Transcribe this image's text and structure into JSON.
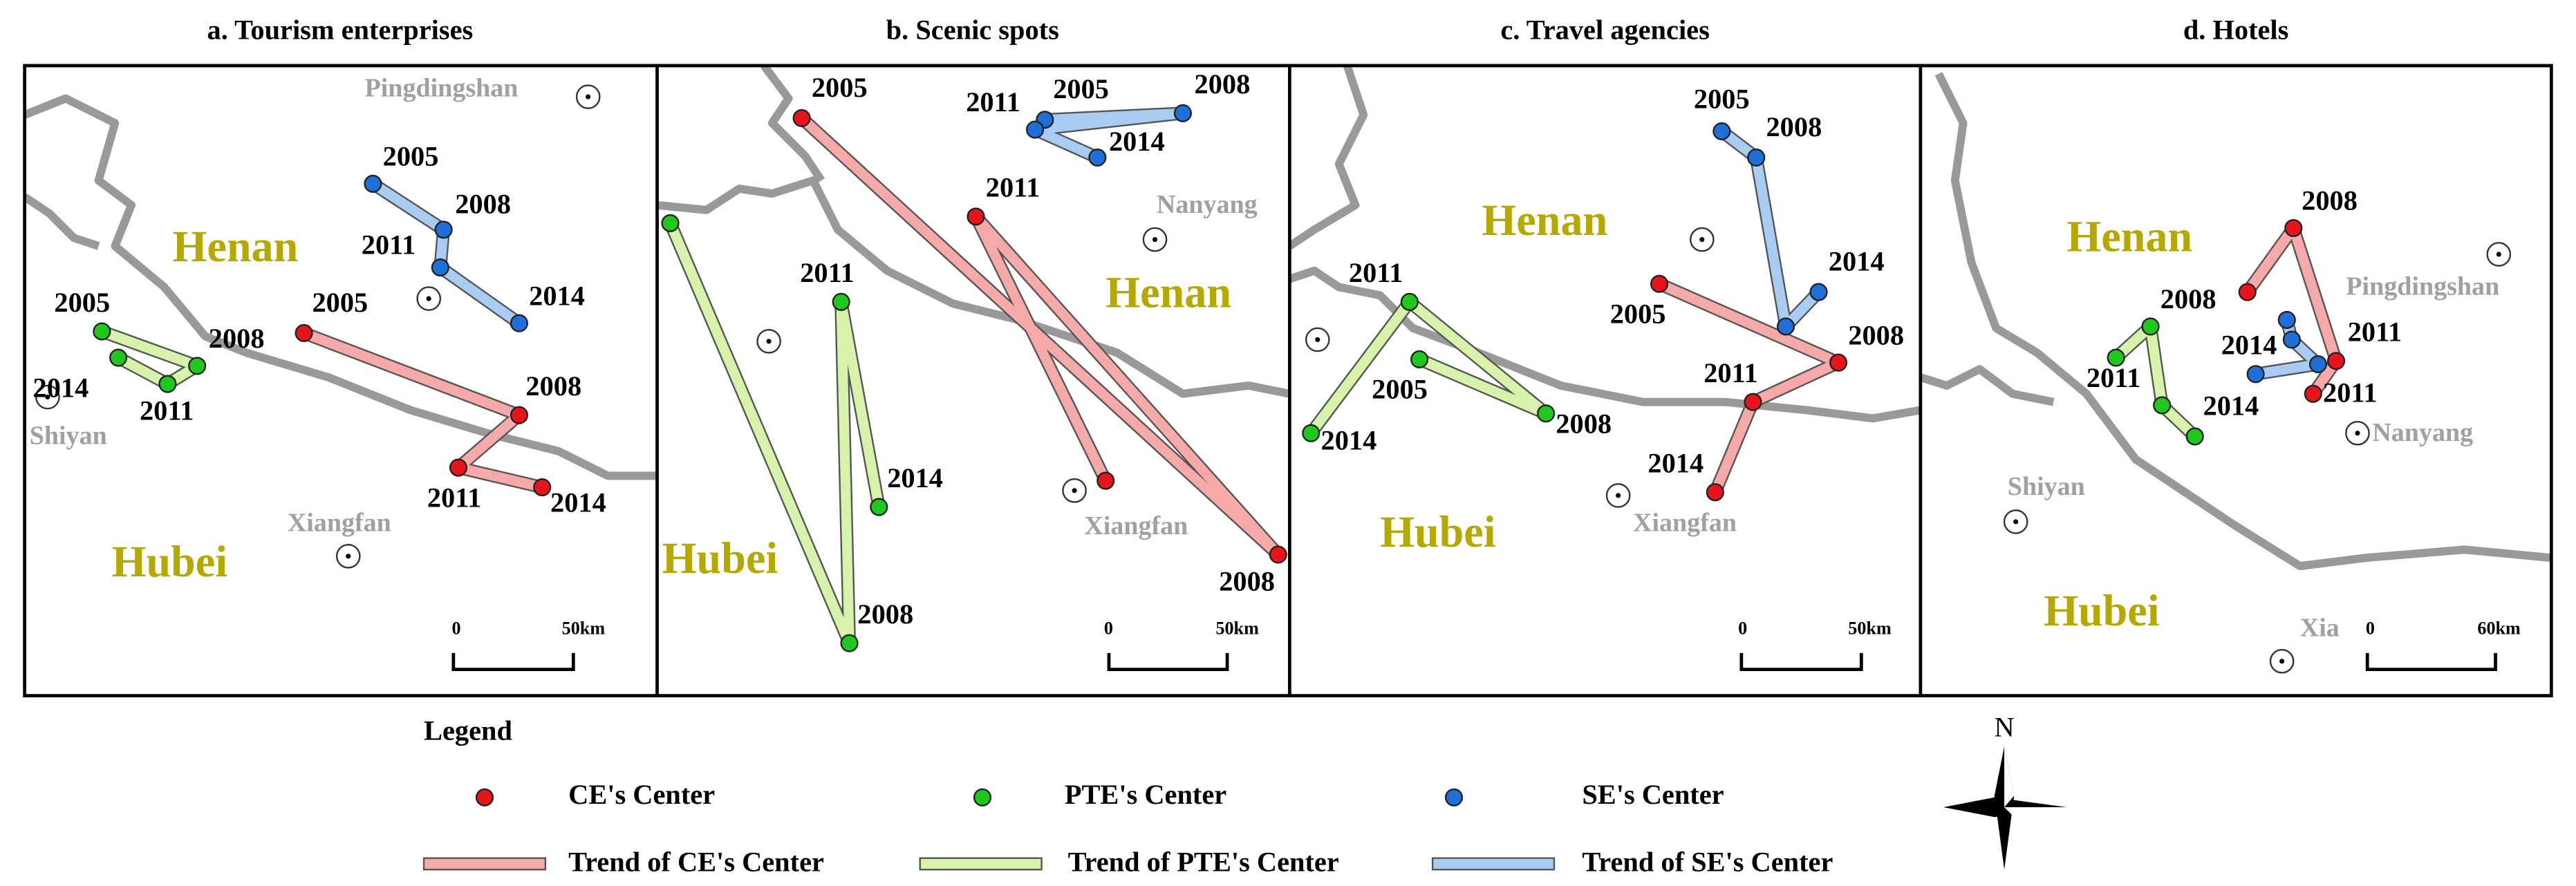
{
  "panels": [
    {
      "title": "a. Tourism enterprises",
      "provinces": [
        "Henan",
        "Hubei"
      ],
      "cities": [
        "Pingdingshan",
        "Shiyan",
        "Xiangfan"
      ],
      "scale": [
        "0",
        "50km"
      ],
      "ce": [
        "2005",
        "2008",
        "2011",
        "2014"
      ],
      "pte": [
        "2005",
        "2008",
        "2011",
        "2014"
      ],
      "se": [
        "2005",
        "2008",
        "2011",
        "2014"
      ]
    },
    {
      "title": "b. Scenic spots",
      "provinces": [
        "Henan",
        "Hubei"
      ],
      "cities": [
        "Nanyang",
        "Xiangfan"
      ],
      "scale": [
        "0",
        "50km"
      ],
      "ce": [
        "2005",
        "2008",
        "2011",
        null
      ],
      "pte": [
        null,
        "2008",
        "2011",
        "2014"
      ],
      "se": [
        "2005",
        "2008",
        "2011",
        "2014"
      ]
    },
    {
      "title": "c. Travel agencies",
      "provinces": [
        "Henan",
        "Hubei"
      ],
      "cities": [
        "Xiangfan"
      ],
      "scale": [
        "0",
        "50km"
      ],
      "ce": [
        "2005",
        "2008",
        "2011",
        "2014"
      ],
      "pte": [
        "2005",
        "2008",
        "2011",
        "2014"
      ],
      "se": [
        "2005",
        "2008",
        null,
        "2014"
      ]
    },
    {
      "title": "d. Hotels",
      "provinces": [
        "Henan",
        "Hubei"
      ],
      "cities": [
        "Pingdingshan",
        "Nanyang",
        "Shiyan",
        "Xia"
      ],
      "scale": [
        "0",
        "60km"
      ],
      "ce": [
        null,
        "2008",
        "2011",
        "2011"
      ],
      "pte": [
        "2011",
        "2008",
        null,
        "2014"
      ],
      "se": [
        null,
        null,
        null,
        "2014"
      ]
    }
  ],
  "legend": {
    "title": "Legend",
    "centers": [
      {
        "name": "CE's Center",
        "color": "#e8141c"
      },
      {
        "name": "PTE's Center",
        "color": "#1ec81e"
      },
      {
        "name": "SE's Center",
        "color": "#1f6fd8"
      }
    ],
    "trends": [
      {
        "name": "Trend of CE's Center",
        "color": "#f5a9a9"
      },
      {
        "name": "Trend of PTE's Center",
        "color": "#d6f2ab"
      },
      {
        "name": "Trend of SE's Center",
        "color": "#a9cdf2"
      }
    ]
  },
  "north": "N"
}
